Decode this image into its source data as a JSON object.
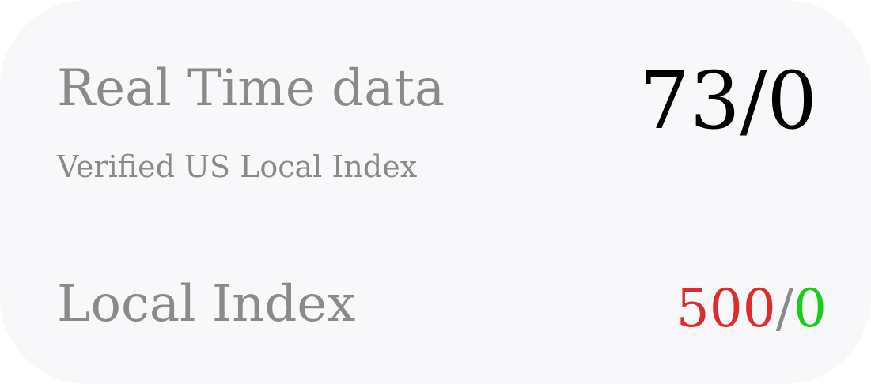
{
  "real_time": {
    "title": "Real Time data",
    "subtitle": "Verified US Local Index",
    "value": "73/0"
  },
  "local_index": {
    "label": "Local Index",
    "value_left": "500",
    "separator": "/",
    "value_right": "0"
  },
  "colors": {
    "background": "#f8f8fa",
    "label_gray": "#8a8a8a",
    "value_red": "#dc2c2c",
    "value_green": "#1ccc1c"
  }
}
